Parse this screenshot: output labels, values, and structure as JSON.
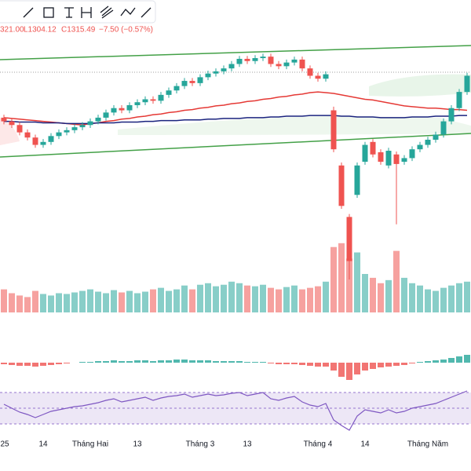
{
  "chart_data": {
    "type": "candlestick",
    "header": [
      "321.00",
      "L1304.12",
      "C1315.49",
      "−7.50 (−0.57%)"
    ],
    "categories": [
      "25",
      null,
      null,
      null,
      null,
      "14",
      null,
      null,
      null,
      null,
      null,
      "Tháng Hai",
      null,
      null,
      null,
      null,
      null,
      "13",
      null,
      null,
      null,
      null,
      null,
      null,
      null,
      "Tháng 3",
      null,
      null,
      null,
      null,
      null,
      "13",
      null,
      null,
      null,
      null,
      null,
      null,
      null,
      null,
      "Tháng 4",
      null,
      null,
      null,
      null,
      null,
      "14",
      null,
      null,
      null,
      null,
      null,
      null,
      null,
      "Tháng Năm",
      null,
      null,
      null,
      null,
      null
    ],
    "open": [
      1255,
      1250,
      1245,
      1235,
      1228,
      1218,
      1222,
      1230,
      1235,
      1238,
      1242,
      1245,
      1250,
      1255,
      1262,
      1268,
      1265,
      1272,
      1276,
      1280,
      1278,
      1286,
      1292,
      1298,
      1305,
      1302,
      1310,
      1315,
      1318,
      1322,
      1328,
      1335,
      1332,
      1336,
      1338,
      1328,
      1325,
      1330,
      1334,
      1322,
      1312,
      1308,
      1265,
      1190,
      1120,
      1150,
      1195,
      1222,
      1208,
      1190,
      1205,
      1195,
      1200,
      1212,
      1218,
      1225,
      1232,
      1250,
      1268,
      1290
    ],
    "high": [
      1259,
      1254,
      1249,
      1239,
      1232,
      1226,
      1234,
      1239,
      1242,
      1246,
      1249,
      1254,
      1259,
      1266,
      1272,
      1272,
      1276,
      1280,
      1284,
      1284,
      1290,
      1296,
      1302,
      1309,
      1309,
      1314,
      1319,
      1322,
      1326,
      1332,
      1339,
      1339,
      1340,
      1342,
      1342,
      1332,
      1334,
      1338,
      1338,
      1326,
      1316,
      1318,
      1270,
      1194,
      1124,
      1194,
      1222,
      1226,
      1212,
      1214,
      1209,
      1204,
      1216,
      1222,
      1229,
      1236,
      1254,
      1272,
      1294,
      1316
    ],
    "low": [
      1246,
      1241,
      1231,
      1224,
      1214,
      1214,
      1218,
      1226,
      1231,
      1234,
      1238,
      1241,
      1246,
      1251,
      1258,
      1261,
      1261,
      1268,
      1272,
      1274,
      1274,
      1282,
      1288,
      1294,
      1298,
      1298,
      1306,
      1311,
      1314,
      1318,
      1324,
      1328,
      1328,
      1332,
      1324,
      1321,
      1321,
      1326,
      1318,
      1308,
      1304,
      1304,
      1208,
      1131,
      1035,
      1146,
      1191,
      1201,
      1191,
      1186,
      1110,
      1191,
      1196,
      1208,
      1214,
      1221,
      1228,
      1246,
      1264,
      1286
    ],
    "close": [
      1250,
      1245,
      1235,
      1228,
      1218,
      1222,
      1230,
      1235,
      1238,
      1242,
      1245,
      1250,
      1255,
      1262,
      1268,
      1265,
      1272,
      1276,
      1280,
      1278,
      1286,
      1292,
      1298,
      1305,
      1302,
      1310,
      1315,
      1318,
      1322,
      1328,
      1335,
      1332,
      1336,
      1338,
      1328,
      1325,
      1330,
      1334,
      1322,
      1312,
      1308,
      1314,
      1212,
      1135,
      1060,
      1190,
      1218,
      1205,
      1195,
      1210,
      1192,
      1200,
      1212,
      1218,
      1225,
      1232,
      1250,
      1268,
      1290,
      1312
    ],
    "ylim": [
      988,
      1383
    ],
    "up_color": "#26a69a",
    "down_color": "#ef5350",
    "lines": [
      {
        "color": "#e53935",
        "values": [
          1255,
          1254,
          1253,
          1252,
          1251,
          1250,
          1249,
          1248,
          1247,
          1246,
          1245,
          1247,
          1248,
          1250,
          1251,
          1253,
          1254,
          1256,
          1257,
          1259,
          1260,
          1262,
          1263,
          1265,
          1266,
          1268,
          1269,
          1271,
          1272,
          1274,
          1275,
          1277,
          1278,
          1280,
          1281,
          1283,
          1284,
          1286,
          1287,
          1289,
          1290,
          1289,
          1288,
          1286,
          1284,
          1282,
          1280,
          1279,
          1277,
          1275,
          1273,
          1271,
          1270,
          1269,
          1268,
          1268,
          1267,
          1266,
          1266,
          1265
        ]
      },
      {
        "color": "#1a237e",
        "values": [
          1250,
          1250,
          1249,
          1249,
          1249,
          1248,
          1248,
          1248,
          1247,
          1247,
          1247,
          1247,
          1248,
          1248,
          1248,
          1249,
          1249,
          1249,
          1250,
          1250,
          1251,
          1251,
          1251,
          1252,
          1252,
          1252,
          1253,
          1253,
          1254,
          1254,
          1254,
          1255,
          1255,
          1255,
          1256,
          1256,
          1257,
          1257,
          1257,
          1258,
          1258,
          1258,
          1258,
          1257,
          1257,
          1256,
          1256,
          1256,
          1255,
          1255,
          1255,
          1255,
          1256,
          1256,
          1256,
          1257,
          1257,
          1257,
          1258,
          1258
        ]
      }
    ],
    "volume": [
      30,
      25,
      22,
      20,
      28,
      24,
      22,
      25,
      24,
      26,
      28,
      30,
      27,
      25,
      29,
      26,
      28,
      25,
      27,
      30,
      32,
      28,
      30,
      35,
      30,
      36,
      38,
      34,
      36,
      40,
      38,
      35,
      34,
      36,
      32,
      30,
      33,
      35,
      30,
      32,
      34,
      40,
      85,
      90,
      70,
      78,
      50,
      45,
      38,
      42,
      80,
      45,
      38,
      35,
      30,
      28,
      32,
      35,
      38,
      40
    ],
    "volume_lim": [
      0,
      100
    ],
    "macd_hist": [
      -2,
      -3,
      -4,
      -4,
      -5,
      -4,
      -3,
      -2,
      -1,
      0,
      1,
      1,
      2,
      2,
      3,
      2,
      2,
      3,
      3,
      2,
      3,
      3,
      4,
      4,
      3,
      3,
      3,
      2,
      2,
      2,
      2,
      1,
      1,
      1,
      -1,
      -2,
      -2,
      -2,
      -3,
      -4,
      -5,
      -5,
      -10,
      -18,
      -22,
      -15,
      -10,
      -8,
      -6,
      -5,
      -4,
      -3,
      -1,
      1,
      2,
      3,
      4,
      6,
      8,
      10
    ],
    "macd_lim": [
      -25,
      25
    ],
    "rsi": [
      55,
      50,
      45,
      42,
      38,
      42,
      46,
      48,
      50,
      52,
      53,
      55,
      57,
      60,
      62,
      58,
      60,
      62,
      64,
      60,
      63,
      65,
      66,
      68,
      64,
      66,
      68,
      66,
      67,
      69,
      70,
      66,
      68,
      70,
      62,
      60,
      63,
      65,
      58,
      54,
      52,
      56,
      35,
      28,
      22,
      40,
      48,
      46,
      44,
      48,
      44,
      46,
      50,
      52,
      54,
      56,
      60,
      64,
      68,
      72
    ],
    "rsi_lim": [
      10,
      90
    ],
    "rsi_color": "#7e57c2"
  }
}
